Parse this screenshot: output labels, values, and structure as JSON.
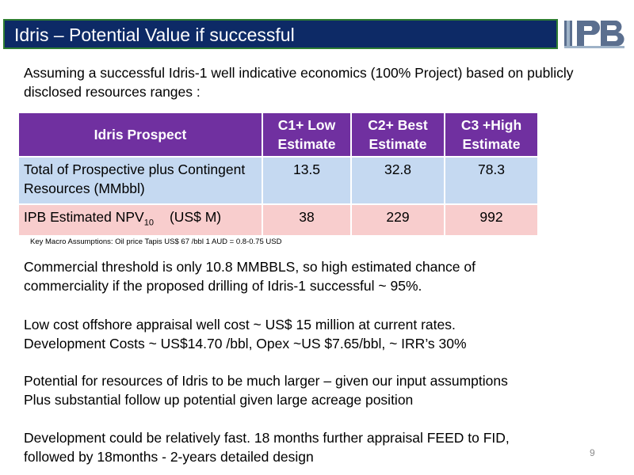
{
  "slide": {
    "title": "Idris – Potential Value if successful",
    "logo_text": "IPB",
    "intro": "Assuming a successful Idris-1 well indicative economics (100% Project)  based on publicly disclosed resources ranges :",
    "table": {
      "headers": [
        "Idris Prospect",
        "C1+ Low Estimate",
        "C2+ Best Estimate",
        "C3 +High Estimate"
      ],
      "rows": [
        {
          "label": "Total of Prospective plus Contingent Resources   (MMbbl)",
          "values": [
            "13.5",
            "32.8",
            "78.3"
          ]
        },
        {
          "label_main": "IPB Estimated NPV",
          "label_sub": "10",
          "label_unit": "(US$ M)",
          "values": [
            "38",
            "229",
            "992"
          ]
        }
      ]
    },
    "macro_assumptions": "Key Macro Assumptions: Oil price  Tapis US$ 67 /bbl     1 AUD = 0.8-0.75 USD",
    "paragraphs": [
      [
        "Commercial threshold is only 10.8  MMBBLS, so high estimated chance of",
        "commerciality if  the proposed drilling of Idris-1 successful ~ 95%."
      ],
      [
        "Low cost offshore appraisal well cost ~ US$ 15 million at current rates.",
        "Development Costs ~ US$14.70 /bbl, Opex ~US $7.65/bbl, ~ IRR’s 30%"
      ],
      [
        "Potential for resources of Idris to be much larger – given our input assumptions",
        "Plus substantial follow up potential given large acreage position"
      ],
      [
        "Development could be relatively fast. 18 months further appraisal FEED to FID,",
        "followed by 18months - 2-years detailed design"
      ]
    ],
    "page_number": "9"
  }
}
